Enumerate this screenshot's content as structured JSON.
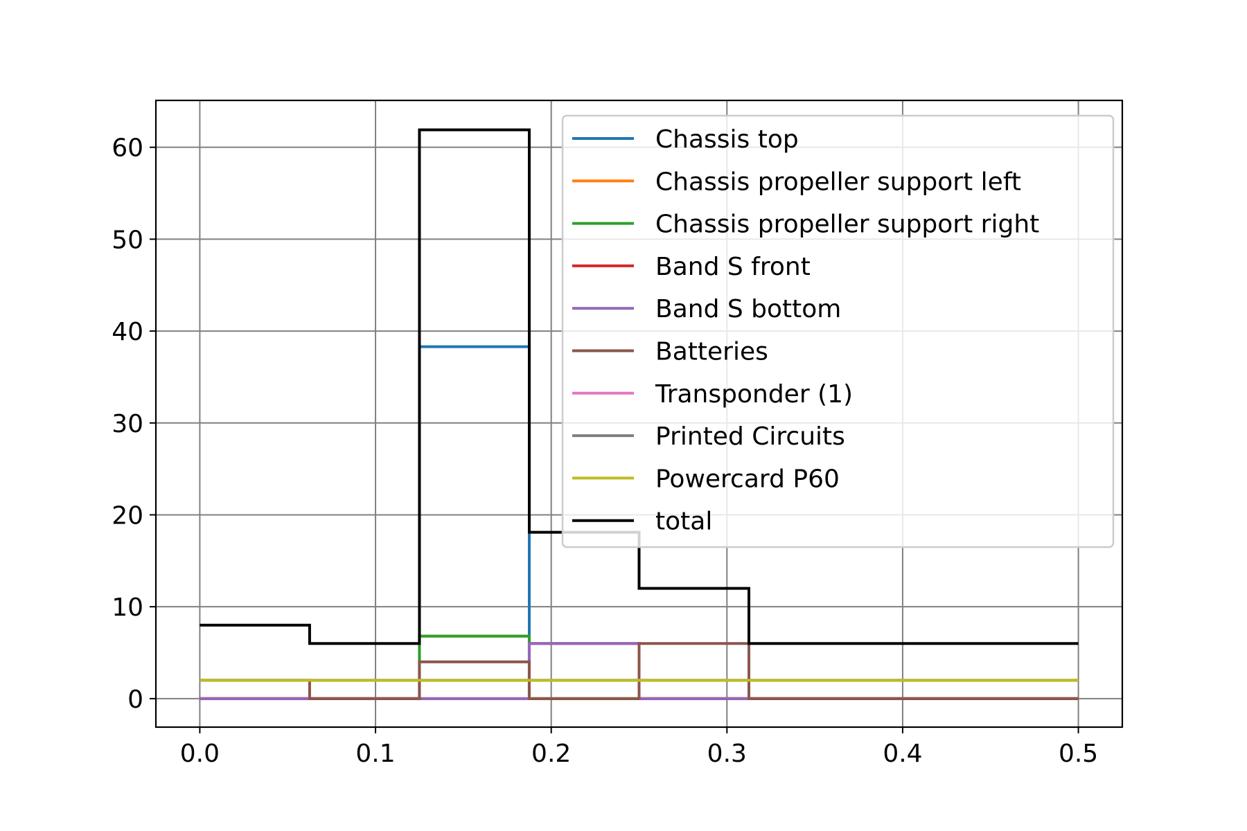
{
  "chart_data": {
    "type": "line",
    "step": "post",
    "title": "",
    "xlabel": "",
    "ylabel": "",
    "xlim": [
      -0.025,
      0.525
    ],
    "ylim": [
      -3.1,
      65.1
    ],
    "xticks": [
      0.0,
      0.1,
      0.2,
      0.3,
      0.4,
      0.5
    ],
    "xtick_labels": [
      "0.0",
      "0.1",
      "0.2",
      "0.3",
      "0.4",
      "0.5"
    ],
    "yticks": [
      0,
      10,
      20,
      30,
      40,
      50,
      60
    ],
    "ytick_labels": [
      "0",
      "10",
      "20",
      "30",
      "40",
      "50",
      "60"
    ],
    "grid": true,
    "legend_position": "upper-right",
    "x": [
      0,
      0.0625,
      0.125,
      0.1875,
      0.25,
      0.3125,
      0.5
    ],
    "series": [
      {
        "name": "Chassis top",
        "color": "#1f77b4",
        "values": [
          0,
          0,
          38.3,
          0,
          0,
          0,
          0
        ]
      },
      {
        "name": "Chassis propeller support left",
        "color": "#ff7f0e",
        "values": [
          0,
          0,
          6.8,
          0,
          0,
          0,
          0
        ]
      },
      {
        "name": "Chassis propeller support right",
        "color": "#2ca02c",
        "values": [
          0,
          0,
          6.8,
          0,
          0,
          0,
          0
        ]
      },
      {
        "name": "Band S front",
        "color": "#d62728",
        "values": [
          0,
          0,
          0,
          6,
          0,
          0,
          0
        ]
      },
      {
        "name": "Band S bottom",
        "color": "#9467bd",
        "values": [
          0,
          0,
          0,
          6,
          0,
          0,
          0
        ]
      },
      {
        "name": "Batteries",
        "color": "#8c564b",
        "values": [
          2,
          0,
          4,
          0,
          6,
          0,
          0
        ]
      },
      {
        "name": "Transponder (1)",
        "color": "#e377c2",
        "values": [
          2,
          2,
          2,
          2,
          2,
          2,
          2
        ]
      },
      {
        "name": "Printed Circuits",
        "color": "#7f7f7f",
        "values": [
          2,
          2,
          2,
          2,
          2,
          2,
          2
        ]
      },
      {
        "name": "Powercard P60",
        "color": "#bcbd22",
        "values": [
          2,
          2,
          2,
          2,
          2,
          2,
          2
        ]
      },
      {
        "name": "total",
        "color": "#000000",
        "values": [
          8,
          6,
          61.9,
          18.1,
          12,
          6,
          6
        ]
      }
    ]
  }
}
